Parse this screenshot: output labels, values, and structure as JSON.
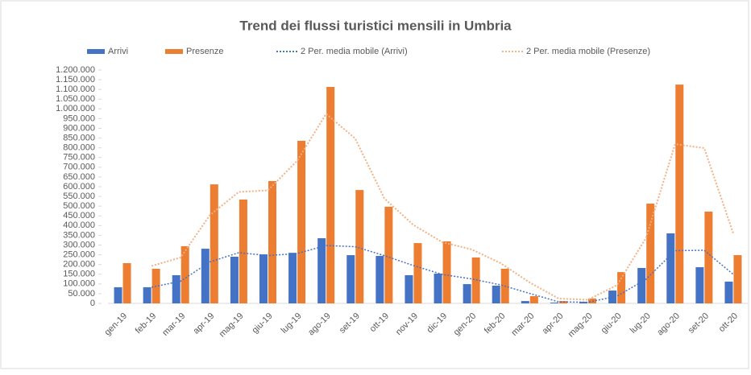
{
  "chart_data": {
    "type": "bar",
    "title": "Trend dei flussi turistici mensili in Umbria",
    "categories": [
      "gen-19",
      "feb-19",
      "mar-19",
      "apr-19",
      "mag-19",
      "giu-19",
      "lug-19",
      "ago-19",
      "set-19",
      "ott-19",
      "nov-19",
      "dic-19",
      "gen-20",
      "feb-20",
      "mar-20",
      "apr-20",
      "mag-20",
      "giu-20",
      "lug-20",
      "ago-20",
      "set-20",
      "ott-20"
    ],
    "series": [
      {
        "name": "Arrivi",
        "color": "#4472c4",
        "type": "bar",
        "values": [
          83000,
          83000,
          145000,
          281000,
          240000,
          252000,
          260000,
          335000,
          248000,
          244000,
          145000,
          153000,
          99000,
          91000,
          12000,
          4000,
          8000,
          66000,
          182000,
          360000,
          186000,
          112000
        ]
      },
      {
        "name": "Presenze",
        "color": "#ed7d31",
        "type": "bar",
        "values": [
          207000,
          178000,
          294000,
          612000,
          534000,
          629000,
          836000,
          1113000,
          583000,
          497000,
          310000,
          319000,
          236000,
          178000,
          37000,
          12000,
          25000,
          161000,
          513000,
          1125000,
          472000,
          248000
        ]
      },
      {
        "name": "2 Per. media mobile (Arrivi)",
        "color": "#4472c4",
        "type": "line",
        "values": [
          null,
          83000,
          114000,
          213000,
          260500,
          246000,
          256000,
          297500,
          291500,
          246000,
          194500,
          149000,
          126000,
          95000,
          51500,
          8000,
          6000,
          37000,
          124000,
          271000,
          273000,
          149000
        ]
      },
      {
        "name": "2 Per. media mobile (Presenze)",
        "color": "#f4b183",
        "type": "line",
        "values": [
          null,
          192500,
          236000,
          453000,
          573000,
          581500,
          732500,
          974500,
          848000,
          540000,
          403500,
          314500,
          277500,
          207000,
          107500,
          24500,
          18500,
          93000,
          337000,
          819000,
          798500,
          360000
        ]
      }
    ],
    "ylim": [
      0,
      1200000
    ],
    "yticks": [
      0,
      {
        "value": 50000,
        "label": "50.000"
      },
      {
        "value": 100000,
        "label": "100.000"
      },
      {
        "value": 150000,
        "label": "150.000"
      },
      {
        "value": 200000,
        "label": "200.000"
      },
      {
        "value": 250000,
        "label": "250.000"
      },
      {
        "value": 300000,
        "label": "300.000"
      },
      {
        "value": 350000,
        "label": "350.000"
      },
      {
        "value": 400000,
        "label": "400.000"
      },
      {
        "value": 450000,
        "label": "450.000"
      },
      {
        "value": 500000,
        "label": "500.000"
      },
      {
        "value": 550000,
        "label": "550.000"
      },
      {
        "value": 600000,
        "label": "600.000"
      },
      {
        "value": 650000,
        "label": "650.000"
      },
      {
        "value": 700000,
        "label": "700.000"
      },
      {
        "value": 750000,
        "label": "750.000"
      },
      {
        "value": 800000,
        "label": "800.000"
      },
      {
        "value": 850000,
        "label": "850.000"
      },
      {
        "value": 900000,
        "label": "900.000"
      },
      {
        "value": 950000,
        "label": "950.000"
      },
      {
        "value": 1000000,
        "label": "1.000.000"
      },
      {
        "value": 1050000,
        "label": "1.050.000"
      },
      {
        "value": 1100000,
        "label": "1.100.000"
      },
      {
        "value": 1150000,
        "label": "1.150.000"
      },
      {
        "value": 1200000,
        "label": "1.200.000"
      }
    ],
    "legend": "top"
  }
}
